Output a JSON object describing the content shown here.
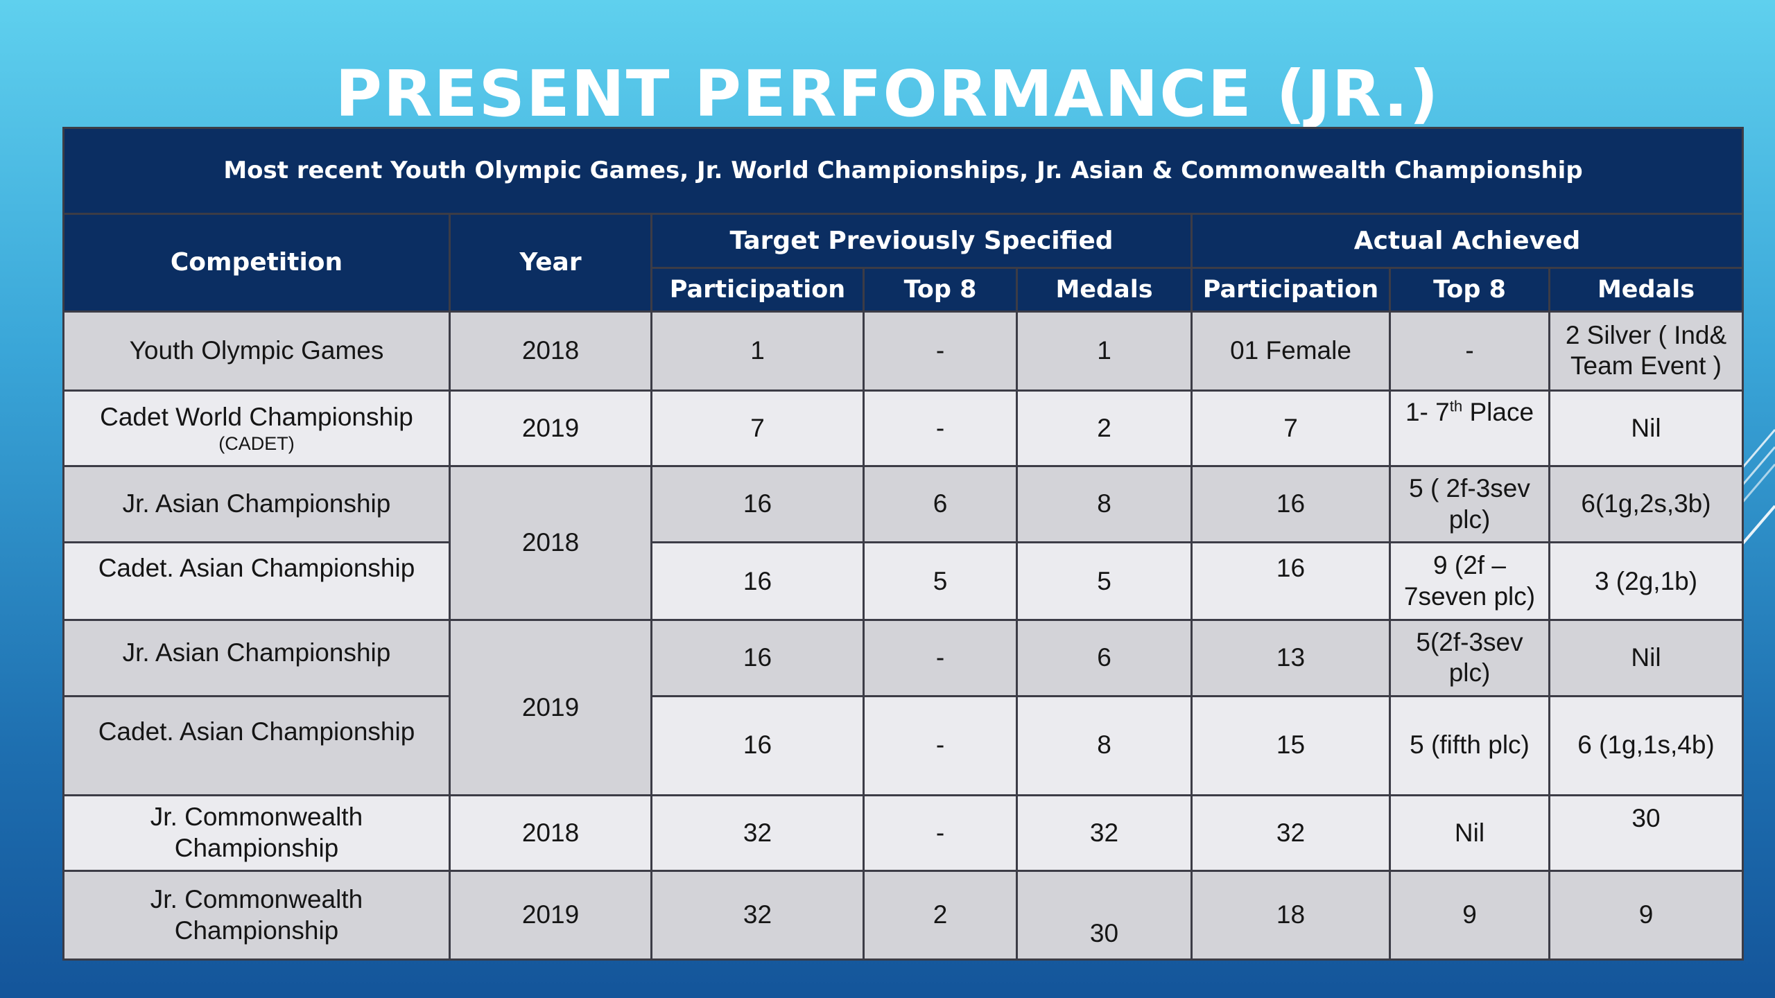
{
  "title": "PRESENT PERFORMANCE (JR.)",
  "table": {
    "banner": "Most recent Youth Olympic Games, Jr. World Championships, Jr. Asian & Commonwealth Championship",
    "headers": {
      "competition": "Competition",
      "year": "Year",
      "target": "Target Previously Specified",
      "actual": "Actual Achieved",
      "participation": "Participation",
      "top8": "Top 8",
      "medals": "Medals"
    },
    "rows": [
      {
        "competition": "Youth Olympic Games",
        "year": "2018",
        "t_part": "1",
        "t_top8": "-",
        "t_medals": "1",
        "a_part": "01 Female",
        "a_top8": "-",
        "a_medals": "2 Silver ( Ind& Team Event )"
      },
      {
        "competition": "Cadet World Championship",
        "competition_note": "(CADET)",
        "year": "2019",
        "t_part": "7",
        "t_top8": "-",
        "t_medals": "2",
        "a_part": "7",
        "a_top8_prefix": "1- 7",
        "a_top8_sup": "th",
        "a_top8_suffix": " Place",
        "a_medals": "Nil"
      },
      {
        "competition": "Jr. Asian Championship",
        "year": "2018",
        "t_part": "16",
        "t_top8": "6",
        "t_medals": "8",
        "a_part": "16",
        "a_top8": "5 ( 2f-3sev plc)",
        "a_medals": "6(1g,2s,3b)"
      },
      {
        "competition": "Cadet. Asian Championship",
        "t_part": "16",
        "t_top8": "5",
        "t_medals": "5",
        "a_part": "16",
        "a_top8": "9 (2f – 7seven plc)",
        "a_medals": "3 (2g,1b)"
      },
      {
        "competition": "Jr. Asian Championship",
        "year": "2019",
        "t_part": "16",
        "t_top8": "-",
        "t_medals": "6",
        "a_part": "13",
        "a_top8": "5(2f-3sev plc)",
        "a_medals": "Nil"
      },
      {
        "competition": "Cadet. Asian Championship",
        "t_part": "16",
        "t_top8": "-",
        "t_medals": "8",
        "a_part": "15",
        "a_top8": "5 (fifth plc)",
        "a_medals": "6 (1g,1s,4b)"
      },
      {
        "competition": "Jr. Commonwealth Championship",
        "year": "2018",
        "t_part": "32",
        "t_top8": "-",
        "t_medals": "32",
        "a_part": "32",
        "a_top8": "Nil",
        "a_medals": "30"
      },
      {
        "competition": "Jr. Commonwealth Championship",
        "year": "2019",
        "t_part": "32",
        "t_top8": "2",
        "t_medals": "30",
        "a_part": "18",
        "a_top8": "9",
        "a_medals": "9"
      }
    ]
  }
}
